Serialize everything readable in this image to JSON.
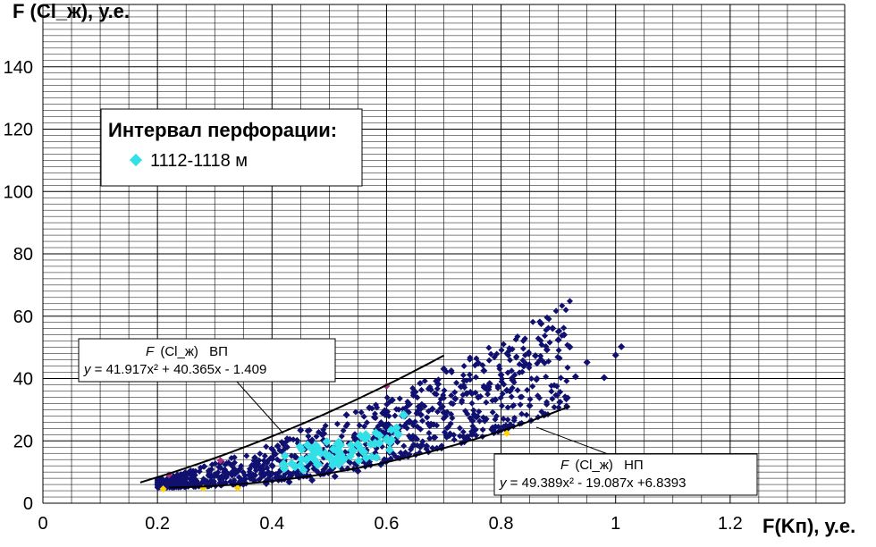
{
  "chart_data": {
    "type": "scatter",
    "title": "",
    "ylabel": "F (Cl_ж), у.е.",
    "xlabel": "F(Kп), у.е.",
    "xlim": [
      0,
      1.4
    ],
    "ylim": [
      0,
      160
    ],
    "x_ticks": [
      {
        "value": 0,
        "label": "0"
      },
      {
        "value": 0.2,
        "label": "0.2"
      },
      {
        "value": 0.4,
        "label": "0.4"
      },
      {
        "value": 0.6,
        "label": "0.6"
      },
      {
        "value": 0.8,
        "label": "0.8"
      },
      {
        "value": 1.0,
        "label": "1"
      },
      {
        "value": 1.2,
        "label": "1.2"
      }
    ],
    "y_ticks": [
      {
        "value": 0,
        "label": "0"
      },
      {
        "value": 20,
        "label": "20"
      },
      {
        "value": 40,
        "label": "40"
      },
      {
        "value": 60,
        "label": "60"
      },
      {
        "value": 80,
        "label": "80"
      },
      {
        "value": 100,
        "label": "100"
      },
      {
        "value": 120,
        "label": "120"
      },
      {
        "value": 140,
        "label": "140"
      }
    ],
    "grid": true,
    "legend": {
      "title": "Интервал перфорации:",
      "items": [
        {
          "label": "1112-1118 м",
          "color": "#33e0e8"
        }
      ],
      "placement": "upper-left"
    },
    "series": [
      {
        "color": "#101070",
        "points": [
          [
            0.22,
            7.5
          ],
          [
            0.24,
            6.8
          ],
          [
            0.26,
            8.2
          ],
          [
            0.28,
            7.0
          ],
          [
            0.3,
            9.1
          ],
          [
            0.32,
            8.4
          ],
          [
            0.34,
            10.2
          ],
          [
            0.36,
            9.0
          ],
          [
            0.38,
            11.3
          ],
          [
            0.4,
            12.1
          ],
          [
            0.42,
            13.4
          ],
          [
            0.44,
            15.0
          ],
          [
            0.46,
            14.2
          ],
          [
            0.48,
            17.3
          ],
          [
            0.5,
            16.1
          ],
          [
            0.52,
            19.4
          ],
          [
            0.54,
            18.2
          ],
          [
            0.56,
            21.5
          ],
          [
            0.58,
            22.6
          ],
          [
            0.6,
            24.1
          ],
          [
            0.62,
            23.0
          ],
          [
            0.64,
            26.3
          ],
          [
            0.66,
            28.4
          ],
          [
            0.68,
            30.2
          ],
          [
            0.7,
            29.1
          ],
          [
            0.72,
            33.5
          ],
          [
            0.74,
            35.2
          ],
          [
            0.76,
            34.0
          ],
          [
            0.78,
            38.4
          ],
          [
            0.8,
            41.2
          ],
          [
            0.82,
            39.5
          ],
          [
            0.84,
            44.1
          ],
          [
            0.86,
            47.3
          ],
          [
            0.88,
            49.2
          ],
          [
            0.9,
            52.4
          ],
          [
            0.92,
            50.1
          ],
          [
            0.95,
            45.2
          ],
          [
            0.98,
            40.3
          ],
          [
            1.0,
            47.5
          ],
          [
            1.01,
            50.2
          ],
          [
            0.87,
            57.6
          ],
          [
            0.89,
            56.1
          ],
          [
            0.91,
            54.0
          ],
          [
            0.79,
            33.2
          ],
          [
            0.75,
            26.4
          ],
          [
            0.71,
            21.8
          ],
          [
            0.67,
            18.3
          ],
          [
            0.63,
            15.1
          ],
          [
            0.59,
            12.4
          ],
          [
            0.55,
            10.3
          ],
          [
            0.51,
            8.6
          ],
          [
            0.47,
            7.4
          ],
          [
            0.43,
            6.8
          ],
          [
            0.39,
            6.3
          ],
          [
            0.35,
            6.1
          ],
          [
            0.31,
            6.0
          ],
          [
            0.27,
            6.2
          ],
          [
            0.23,
            6.5
          ],
          [
            0.45,
            23.4
          ],
          [
            0.53,
            28.3
          ],
          [
            0.61,
            33.1
          ],
          [
            0.69,
            38.2
          ],
          [
            0.77,
            42.5
          ],
          [
            0.57,
            30.6
          ],
          [
            0.65,
            35.7
          ],
          [
            0.73,
            37.4
          ],
          [
            0.81,
            36.2
          ],
          [
            0.85,
            31.3
          ],
          [
            0.93,
            40.6
          ],
          [
            0.49,
            20.2
          ],
          [
            0.41,
            18.3
          ],
          [
            0.37,
            14.6
          ],
          [
            0.33,
            12.1
          ],
          [
            0.29,
            10.4
          ],
          [
            0.25,
            9.2
          ],
          [
            0.7,
            43.1
          ],
          [
            0.76,
            45.0
          ]
        ]
      },
      {
        "color": "#33e0e8",
        "points": [
          [
            0.42,
            12.5
          ],
          [
            0.44,
            11.8
          ],
          [
            0.46,
            13.9
          ],
          [
            0.48,
            12.4
          ],
          [
            0.5,
            14.8
          ],
          [
            0.52,
            15.6
          ],
          [
            0.54,
            17.1
          ],
          [
            0.56,
            16.4
          ],
          [
            0.58,
            19.2
          ],
          [
            0.6,
            20.5
          ],
          [
            0.62,
            22.1
          ],
          [
            0.63,
            28.3
          ],
          [
            0.55,
            18.8
          ],
          [
            0.47,
            15.2
          ]
        ]
      },
      {
        "color": "#ffd400",
        "points": [
          [
            0.21,
            4.6
          ],
          [
            0.28,
            4.8
          ],
          [
            0.34,
            4.9
          ],
          [
            0.81,
            22.4
          ]
        ]
      },
      {
        "color": "#b03080",
        "points": [
          [
            0.22,
            9.1
          ],
          [
            0.6,
            37.6
          ],
          [
            0.31,
            13.7
          ]
        ]
      }
    ],
    "trendlines": [
      {
        "name": "ВП",
        "equation_label": {
          "func": "F",
          "arg": "(Cl_ж)",
          "tag": "ВП",
          "y": "y",
          "eq": " =  41.917x² + 40.365x - 1.409"
        },
        "coefficients": {
          "a": 41.917,
          "b": 40.365,
          "c": -1.409
        },
        "x_range": [
          0.17,
          0.7
        ]
      },
      {
        "name": "НП",
        "equation_label": {
          "func": "F",
          "arg": "(Cl_ж)",
          "tag": "НП",
          "y": "y",
          "eq": " =  49.389x² - 19.087x +6.8393"
        },
        "coefficients": {
          "a": 49.389,
          "b": -19.087,
          "c": 6.8393
        },
        "x_range": [
          0.22,
          0.92
        ]
      }
    ]
  }
}
